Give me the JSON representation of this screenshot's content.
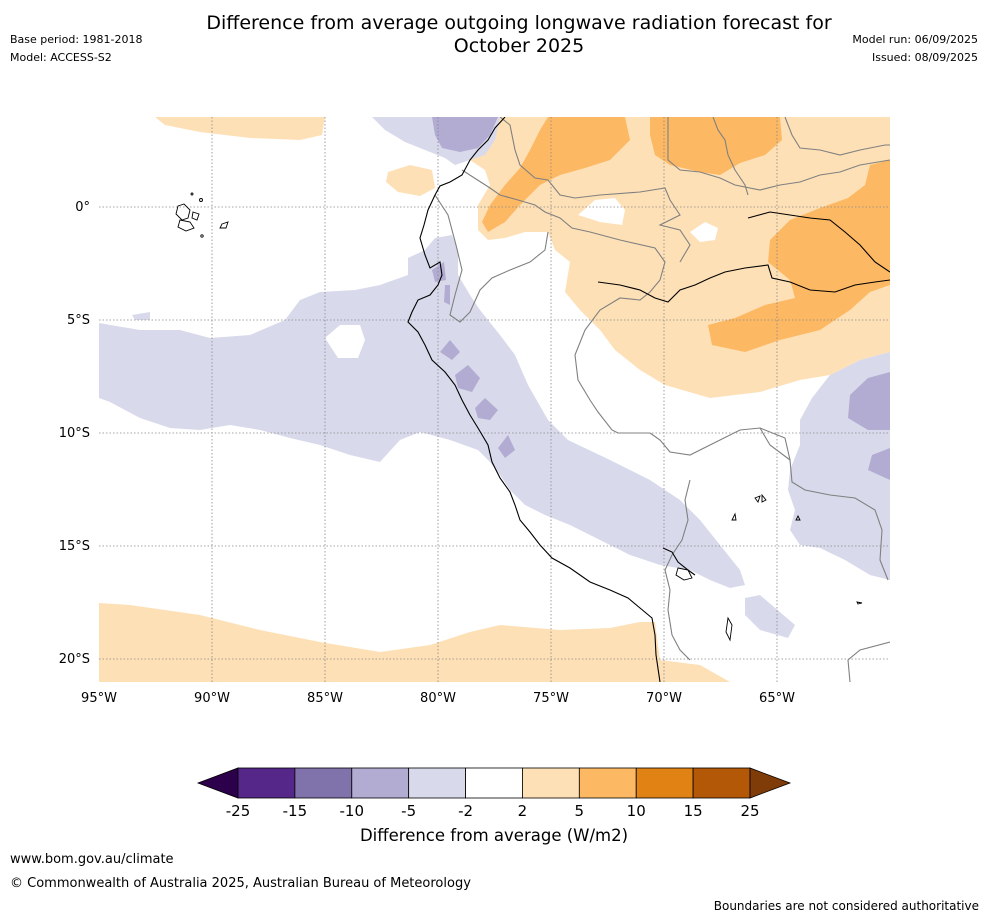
{
  "title": "Difference from average outgoing longwave radiation forecast for October 2025",
  "title_line1": "Difference from average outgoing longwave radiation forecast for",
  "title_line2": "October 2025",
  "meta_left": [
    "Base period: 1981-2018",
    "Model: ACCESS-S2"
  ],
  "meta_right": [
    "Model run: 06/09/2025",
    "Issued: 08/09/2025"
  ],
  "map": {
    "lon_range": [
      -95,
      -60
    ],
    "lat_range": [
      -21,
      4
    ],
    "lon_ticks": [
      {
        "value": -95,
        "label": "95°W"
      },
      {
        "value": -90,
        "label": "90°W"
      },
      {
        "value": -85,
        "label": "85°W"
      },
      {
        "value": -80,
        "label": "80°W"
      },
      {
        "value": -75,
        "label": "75°W"
      },
      {
        "value": -70,
        "label": "70°W"
      },
      {
        "value": -65,
        "label": "65°W"
      }
    ],
    "lat_ticks": [
      {
        "value": 0,
        "label": "0°"
      },
      {
        "value": -5,
        "label": "5°S"
      },
      {
        "value": -10,
        "label": "10°S"
      },
      {
        "value": -15,
        "label": "15°S"
      },
      {
        "value": -20,
        "label": "20°S"
      }
    ],
    "gridlines": "dotted"
  },
  "colorbar": {
    "title": "Difference from average (W/m2)",
    "ticks": [
      "-25",
      "-15",
      "-10",
      "-5",
      "-2",
      "2",
      "5",
      "10",
      "15",
      "25"
    ],
    "colors": [
      "#542788",
      "#8073ac",
      "#b2abd2",
      "#d8daeb",
      "#ffffff",
      "#fee0b6",
      "#fdb863",
      "#e08214",
      "#b35806"
    ],
    "extend_low_color": "#2d004b",
    "extend_high_color": "#7f3b08"
  },
  "footer": {
    "url": "www.bom.gov.au/climate",
    "copyright": "© Commonwealth of Australia 2025, Australian Bureau of Meteorology",
    "disclaimer": "Boundaries are not considered authoritative"
  }
}
